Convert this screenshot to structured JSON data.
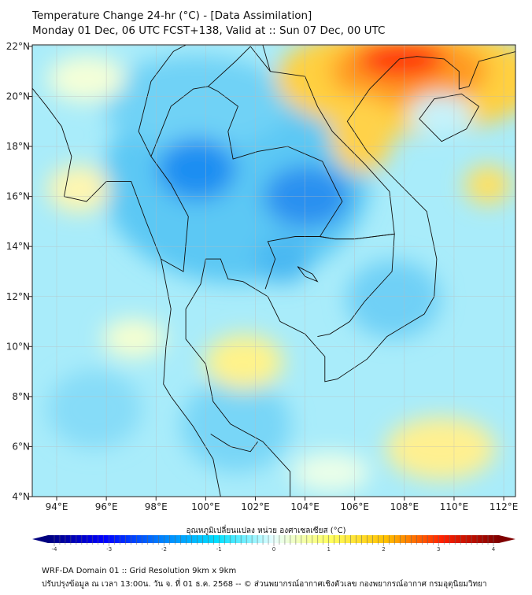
{
  "header": {
    "title": "Temperature Change 24-hr (°C) - [Data Assimilation]",
    "subtitle": "Monday 01 Dec, 06 UTC FCST+138, Valid at :: Sun 07 Dec, 00 UTC"
  },
  "map": {
    "lon_range": [
      93,
      112.5
    ],
    "lat_range": [
      4,
      22.06
    ],
    "lon_ticks": [
      "94°E",
      "96°E",
      "98°E",
      "100°E",
      "102°E",
      "104°E",
      "106°E",
      "108°E",
      "110°E",
      "112°E"
    ],
    "lon_tick_values": [
      94,
      96,
      98,
      100,
      102,
      104,
      106,
      108,
      110,
      112
    ],
    "lat_ticks": [
      "4°N",
      "6°N",
      "8°N",
      "10°N",
      "12°N",
      "14°N",
      "16°N",
      "18°N",
      "20°N",
      "22°N"
    ],
    "lat_tick_values": [
      4,
      6,
      8,
      10,
      12,
      14,
      16,
      18,
      20,
      22
    ]
  },
  "colorbar": {
    "title": "อุณหภูมิเปลี่ยนแปลง หน่วย องศาเซลเซียส (°C)",
    "ticks": [
      "-4",
      "-3",
      "-2",
      "-1",
      "0",
      "1",
      "2",
      "3",
      "4"
    ],
    "range": [
      -4,
      4
    ],
    "colors": [
      "#00007f",
      "#0000ff",
      "#0080ff",
      "#00e0ff",
      "#e8ffff",
      "#ffff60",
      "#ffc000",
      "#ff2000",
      "#7f0000"
    ]
  },
  "footer": {
    "line1": "WRF-DA Domain 01 :: Grid Resolution 9km x 9km",
    "line2": "ปรับปรุงข้อมูล ณ เวลา 13:00น. วัน จ. ที่ 01 ธ.ค. 2568 -- © ส่วนพยากรณ์อากาศเชิงตัวเลข กองพยากรณ์อากาศ กรมอุตุนิยมวิทยา"
  }
}
